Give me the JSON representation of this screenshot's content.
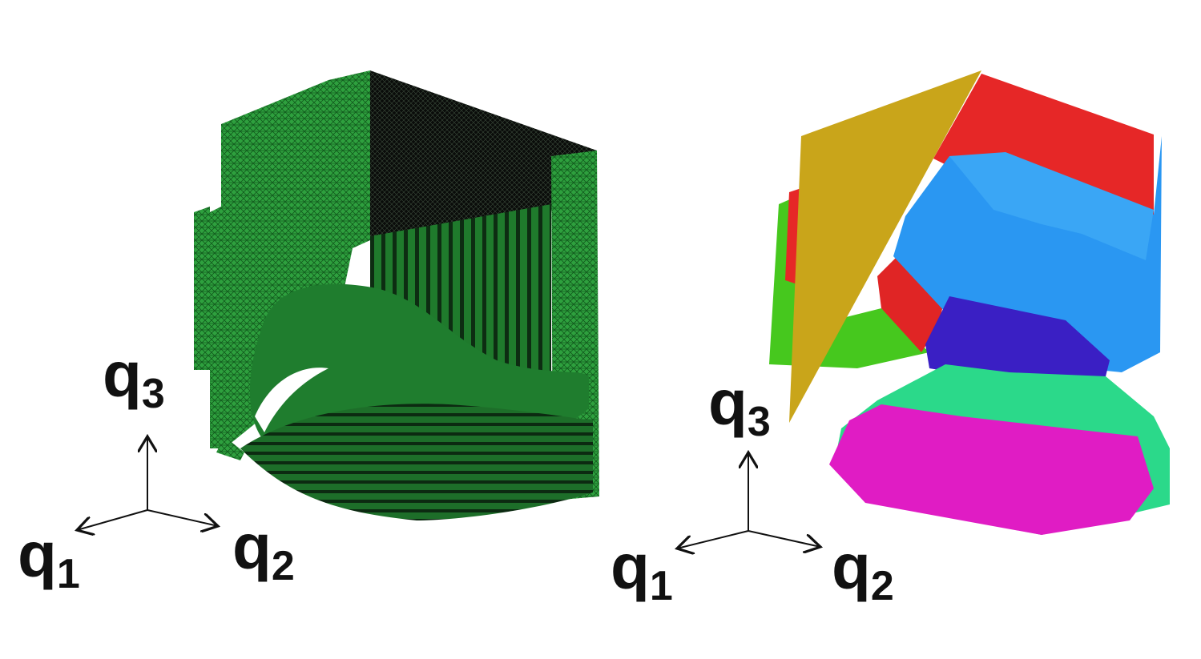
{
  "left_panel": {
    "axes": {
      "q1": {
        "base": "q",
        "sub": "1"
      },
      "q2": {
        "base": "q",
        "sub": "2"
      },
      "q3": {
        "base": "q",
        "sub": "3"
      }
    },
    "mesh_color": "#2e9e3e",
    "mesh_dark": "#0b0f0b"
  },
  "right_panel": {
    "axes": {
      "q1": {
        "base": "q",
        "sub": "1"
      },
      "q2": {
        "base": "q",
        "sub": "2"
      },
      "q3": {
        "base": "q",
        "sub": "3"
      }
    },
    "region_colors": {
      "gold": "#c9a51a",
      "red": "#e62727",
      "blue": "#2a97f2",
      "indigo": "#3a1fc4",
      "green": "#46c81e",
      "teal": "#2bd98a",
      "magenta": "#e01cc4"
    }
  }
}
